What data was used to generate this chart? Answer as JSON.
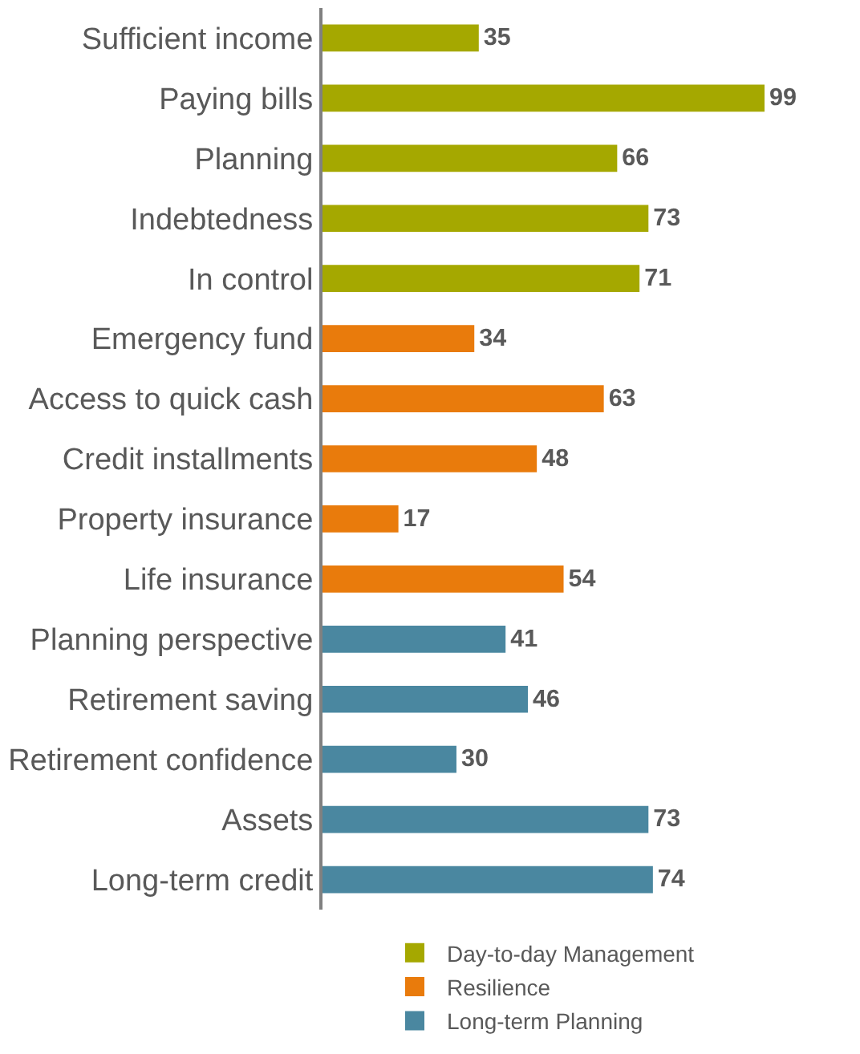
{
  "chart_data": {
    "type": "bar",
    "orientation": "horizontal",
    "categories": [
      "Sufficient income",
      "Paying bills",
      "Planning",
      "Indebtedness",
      "In control",
      "Emergency fund",
      "Access to quick cash",
      "Credit installments",
      "Property insurance",
      "Life insurance",
      "Planning perspective",
      "Retirement saving",
      "Retirement confidence",
      "Assets",
      "Long-term credit"
    ],
    "series": [
      {
        "name": "Day-to-day Management",
        "color": "#a5a800",
        "values": [
          35,
          99,
          66,
          73,
          71,
          null,
          null,
          null,
          null,
          null,
          null,
          null,
          null,
          null,
          null
        ]
      },
      {
        "name": "Resilience",
        "color": "#e97b0c",
        "values": [
          null,
          null,
          null,
          null,
          null,
          34,
          63,
          48,
          17,
          54,
          null,
          null,
          null,
          null,
          null
        ]
      },
      {
        "name": "Long-term Planning",
        "color": "#4a87a0",
        "values": [
          null,
          null,
          null,
          null,
          null,
          null,
          null,
          null,
          null,
          null,
          41,
          46,
          30,
          73,
          74
        ]
      }
    ],
    "data_labels": true,
    "legend": "bottom",
    "grid": false
  }
}
